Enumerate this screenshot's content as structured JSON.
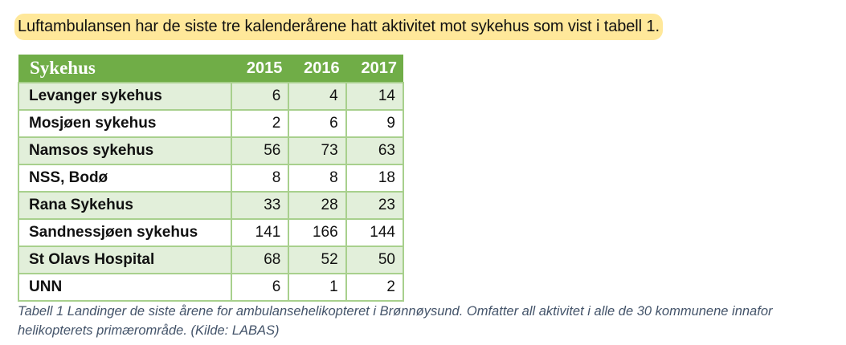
{
  "intro_text": "Luftambulansen har de siste tre kalenderårene hatt aktivitet mot sykehus som vist i tabell 1.",
  "colors": {
    "header_bg": "#70ad47",
    "band_bg": "#e2efda",
    "border": "#a8d08d",
    "highlight": "#ffe89a",
    "caption": "#44546a"
  },
  "table": {
    "headers": [
      "Sykehus",
      "2015",
      "2016",
      "2017"
    ],
    "rows": [
      {
        "name": "Levanger sykehus",
        "v2015": "6",
        "v2016": "4",
        "v2017": "14"
      },
      {
        "name": "Mosjøen sykehus",
        "v2015": "2",
        "v2016": "6",
        "v2017": "9"
      },
      {
        "name": "Namsos sykehus",
        "v2015": "56",
        "v2016": "73",
        "v2017": "63"
      },
      {
        "name": "NSS, Bodø",
        "v2015": "8",
        "v2016": "8",
        "v2017": "18"
      },
      {
        "name": "Rana Sykehus",
        "v2015": "33",
        "v2016": "28",
        "v2017": "23"
      },
      {
        "name": "Sandnessjøen sykehus",
        "v2015": "141",
        "v2016": "166",
        "v2017": "144"
      },
      {
        "name": "St Olavs Hospital",
        "v2015": "68",
        "v2016": "52",
        "v2017": "50"
      },
      {
        "name": "UNN",
        "v2015": "6",
        "v2016": "1",
        "v2017": "2"
      }
    ]
  },
  "caption": "Tabell 1 Landinger de siste årene for ambulansehelikopteret i Brønnøysund. Omfatter all aktivitet i alle de 30 kommunene innafor helikopterets primærområde. (Kilde: LABAS)"
}
